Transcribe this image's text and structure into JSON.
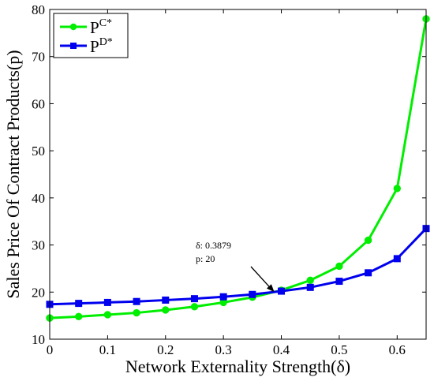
{
  "chart_data": {
    "type": "line",
    "xlabel": "Network Externality Strength(δ)",
    "ylabel": "Sales Price Of Contract Products(p)",
    "xlim": [
      0,
      0.65
    ],
    "ylim": [
      10,
      80
    ],
    "xticks": [
      0,
      0.1,
      0.2,
      0.3,
      0.4,
      0.5,
      0.6
    ],
    "xtick_labels": [
      "0",
      "0.1",
      "0.2",
      "0.3",
      "0.4",
      "0.5",
      "0.6"
    ],
    "yticks": [
      10,
      20,
      30,
      40,
      50,
      60,
      70,
      80
    ],
    "ytick_labels": [
      "10",
      "20",
      "30",
      "40",
      "50",
      "60",
      "70",
      "80"
    ],
    "x": [
      0,
      0.05,
      0.1,
      0.15,
      0.2,
      0.25,
      0.3,
      0.35,
      0.4,
      0.45,
      0.5,
      0.55,
      0.6,
      0.65
    ],
    "series": [
      {
        "name_base": "P",
        "name_sup": "C*",
        "color": "#00ee00",
        "marker": "circle",
        "values": [
          14.5,
          14.8,
          15.2,
          15.6,
          16.2,
          16.9,
          17.8,
          18.9,
          20.4,
          22.5,
          25.5,
          31.0,
          42.0,
          78.0
        ]
      },
      {
        "name_base": "P",
        "name_sup": "D*",
        "color": "#0000ee",
        "marker": "square",
        "values": [
          17.4,
          17.6,
          17.8,
          18.0,
          18.3,
          18.6,
          19.0,
          19.5,
          20.2,
          21.0,
          22.3,
          24.1,
          27.1,
          33.5
        ]
      }
    ],
    "legend": "top-left",
    "annotation": {
      "line1": "δ:  0.3879",
      "line2": "p:  20",
      "x": 0.3879,
      "y": 20
    }
  }
}
